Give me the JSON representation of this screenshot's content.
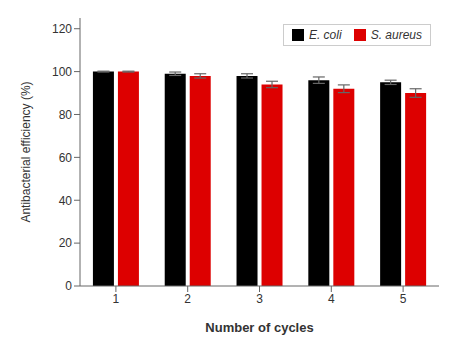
{
  "chart_data": {
    "type": "bar",
    "categories": [
      "1",
      "2",
      "3",
      "4",
      "5"
    ],
    "series": [
      {
        "name": "E. coli",
        "color": "#000000",
        "values": [
          100.0,
          99.0,
          98.0,
          96.0,
          95.0
        ],
        "errors": [
          0.2,
          0.8,
          1.0,
          1.5,
          1.0
        ]
      },
      {
        "name": "S. aureus",
        "color": "#dd0000",
        "values": [
          100.0,
          98.0,
          94.0,
          92.0,
          90.0
        ],
        "errors": [
          0.2,
          1.0,
          1.5,
          1.8,
          2.0
        ]
      }
    ],
    "xlabel": "Number of cycles",
    "ylabel": "Antibacterial efficiency (%)",
    "ylim": [
      0,
      125
    ],
    "yticks": [
      0,
      20,
      40,
      60,
      80,
      100,
      120
    ],
    "legend": "upper right",
    "grid": false
  }
}
